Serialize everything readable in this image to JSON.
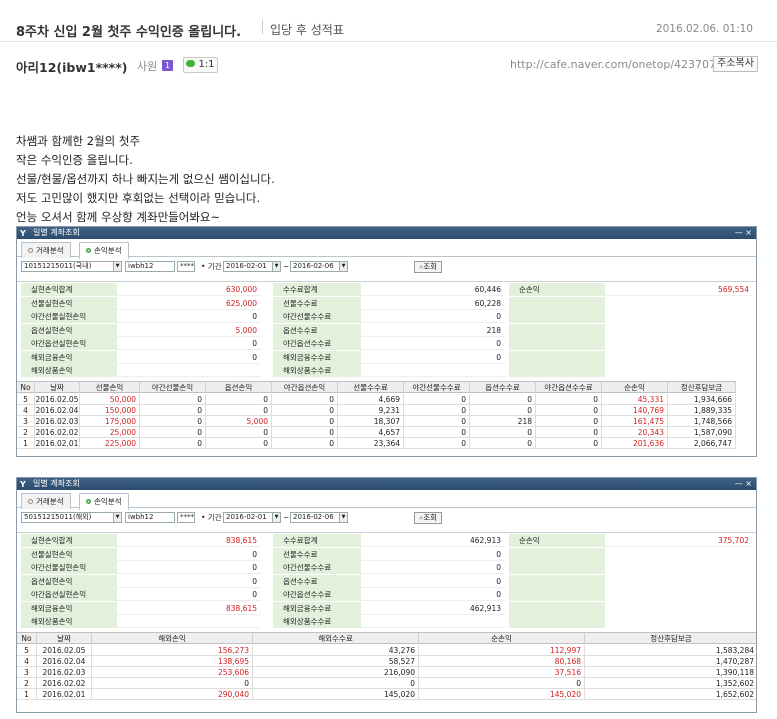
{
  "header": {
    "title": "8주차 신입 2월 첫주 수익인증 올립니다.",
    "board": "입당 후 성적표",
    "date": "2016.02.06. 01:10"
  },
  "author": {
    "name": "아리12(ibw1****)",
    "role": "사원",
    "level_badge": "1",
    "chat_label": "1:1",
    "url": "http://cafe.naver.com/onetop/423707",
    "copy_label": "주소복사"
  },
  "body_lines": [
    "차쌤과 함께한 2월의 첫주",
    "작은 수익인증 올립니다.",
    "선물/현물/옵션까지 하나 빠지는게 없으신 쌤이십니다.",
    "저도 고민많이 했지만 후회없는 선택이라 믿습니다.",
    "언능 오셔서 함께 우상향 계좌만들어봐요~"
  ],
  "shot1": {
    "window_title": "일별 계좌조회",
    "window_icon": "Y",
    "window_controls": "— ×",
    "tabs": [
      "거래분석",
      "손익분석"
    ],
    "account": "10151215011(국내)",
    "user": "iwbh12",
    "pwd": "****",
    "period_label": "기간",
    "date_from": "2016-02-01",
    "date_to": "2016-02-06",
    "tilde": "~",
    "query_button": "조회",
    "summary": {
      "col1": [
        {
          "label": "실현손익합계",
          "value": "630,000",
          "red": true
        },
        {
          "label": "선물실현손익",
          "value": "625,000",
          "red": true
        },
        {
          "label": "야간선물실현손익",
          "value": "0",
          "red": false
        },
        {
          "label": "옵션실현손익",
          "value": "5,000",
          "red": true
        },
        {
          "label": "야간옵션실현손익",
          "value": "0",
          "red": false
        },
        {
          "label": "해외금융손익",
          "value": "0",
          "red": false
        },
        {
          "label": "해외상품손익",
          "value": "",
          "red": false
        }
      ],
      "col2": [
        {
          "label": "수수료합계",
          "value": "60,446"
        },
        {
          "label": "선물수수료",
          "value": "60,228"
        },
        {
          "label": "야간선물수수료",
          "value": "0"
        },
        {
          "label": "옵션수수료",
          "value": "218"
        },
        {
          "label": "야간옵션수수료",
          "value": "0"
        },
        {
          "label": "해외금융수수료",
          "value": "0"
        },
        {
          "label": "해외상품수수료",
          "value": ""
        }
      ],
      "net_label": "순손익",
      "net_value": "569,554"
    },
    "columns": [
      "No",
      "날짜",
      "선물손익",
      "야간선물손익",
      "옵션손익",
      "야간옵션손익",
      "선물수수료",
      "야간선물수수료",
      "옵션수수료",
      "야간옵션수수료",
      "순손익",
      "정산후담보금"
    ],
    "rows": [
      [
        "5",
        "2016.02.05",
        "50,000",
        "0",
        "0",
        "0",
        "4,669",
        "0",
        "0",
        "0",
        "45,331",
        "1,934,666"
      ],
      [
        "4",
        "2016.02.04",
        "150,000",
        "0",
        "0",
        "0",
        "9,231",
        "0",
        "0",
        "0",
        "140,769",
        "1,889,335"
      ],
      [
        "3",
        "2016.02.03",
        "175,000",
        "0",
        "5,000",
        "0",
        "18,307",
        "0",
        "218",
        "0",
        "161,475",
        "1,748,566"
      ],
      [
        "2",
        "2016.02.02",
        "25,000",
        "0",
        "0",
        "0",
        "4,657",
        "0",
        "0",
        "0",
        "20,343",
        "1,587,090"
      ],
      [
        "1",
        "2016.02.01",
        "225,000",
        "0",
        "0",
        "0",
        "23,364",
        "0",
        "0",
        "0",
        "201,636",
        "2,066,747"
      ]
    ]
  },
  "shot2": {
    "window_title": "일별 계좌조회",
    "window_icon": "Y",
    "window_controls": "— ×",
    "tabs": [
      "거래분석",
      "손익분석"
    ],
    "account": "50151215011(해외)",
    "user": "iwbh12",
    "pwd": "****",
    "period_label": "기간",
    "date_from": "2016-02-01",
    "date_to": "2016-02-06",
    "tilde": "~",
    "query_button": "조회",
    "summary": {
      "col1": [
        {
          "label": "실현손익합계",
          "value": "838,615",
          "red": true
        },
        {
          "label": "선물실현손익",
          "value": "0",
          "red": false
        },
        {
          "label": "야간선물실현손익",
          "value": "0",
          "red": false
        },
        {
          "label": "옵션실현손익",
          "value": "0",
          "red": false
        },
        {
          "label": "야간옵션실현손익",
          "value": "0",
          "red": false
        },
        {
          "label": "해외금융손익",
          "value": "838,615",
          "red": true
        },
        {
          "label": "해외상품손익",
          "value": "",
          "red": false
        }
      ],
      "col2": [
        {
          "label": "수수료합계",
          "value": "462,913"
        },
        {
          "label": "선물수수료",
          "value": "0"
        },
        {
          "label": "야간선물수수료",
          "value": "0"
        },
        {
          "label": "옵션수수료",
          "value": "0"
        },
        {
          "label": "야간옵션수수료",
          "value": "0"
        },
        {
          "label": "해외금융수수료",
          "value": "462,913"
        },
        {
          "label": "해외상품수수료",
          "value": ""
        }
      ],
      "net_label": "순손익",
      "net_value": "375,702"
    },
    "columns": [
      "No",
      "날짜",
      "해외손익",
      "해외수수료",
      "순손익",
      "정산후담보금"
    ],
    "rows": [
      [
        "5",
        "2016.02.05",
        "156,273",
        "43,276",
        "112,997",
        "1,583,284"
      ],
      [
        "4",
        "2016.02.04",
        "138,695",
        "58,527",
        "80,168",
        "1,470,287"
      ],
      [
        "3",
        "2016.02.03",
        "253,606",
        "216,090",
        "37,516",
        "1,390,118"
      ],
      [
        "2",
        "2016.02.02",
        "0",
        "0",
        "0",
        "1,352,602"
      ],
      [
        "1",
        "2016.02.01",
        "290,040",
        "145,020",
        "145,020",
        "1,652,602"
      ]
    ]
  },
  "colors": {
    "red": "#d42020",
    "label_bg": "#e3f1dc",
    "titlebar": "#2b4b6e"
  }
}
